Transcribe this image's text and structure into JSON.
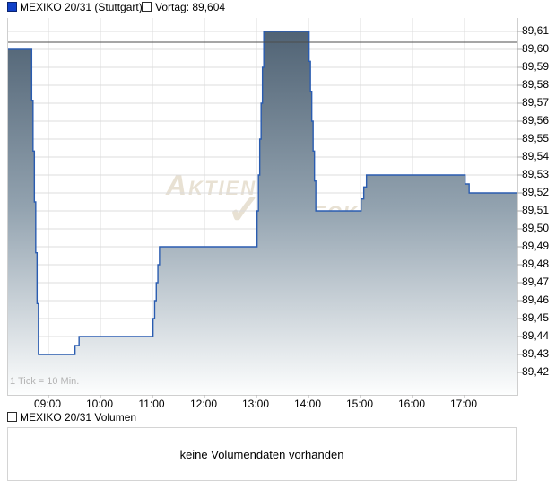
{
  "header": {
    "series_label": "MEXIKO 20/31 (Stuttgart)",
    "vortag_label": "Vortag: 89,604"
  },
  "chart_data": {
    "type": "area",
    "subtype": "step-area-intraday",
    "title": "MEXIKO 20/31 (Stuttgart)",
    "x_axis": {
      "hour_labels": [
        "09:00",
        "10:00",
        "11:00",
        "12:00",
        "13:00",
        "14:00",
        "15:00",
        "16:00",
        "17:00"
      ],
      "tick_note": "1 Tick = 10 Min.",
      "range": [
        "08:13",
        "18:01"
      ]
    },
    "y_axis": {
      "min": 89.42,
      "max": 89.61,
      "step": 0.01,
      "side": "right",
      "tick_labels": [
        "89,61",
        "89,60",
        "89,59",
        "89,58",
        "89,57",
        "89,56",
        "89,55",
        "89,54",
        "89,53",
        "89,52",
        "89,51",
        "89,50",
        "89,49",
        "89,48",
        "89,47",
        "89,46",
        "89,45",
        "89,44",
        "89,43",
        "89,42"
      ]
    },
    "reference_line": {
      "label": "Vortag",
      "value": 89.604
    },
    "series": [
      {
        "name": "MEXIKO 20/31",
        "points": [
          [
            "08:13",
            89.6
          ],
          [
            "08:40",
            89.6
          ],
          [
            "08:50",
            89.43
          ],
          [
            "09:30",
            89.43
          ],
          [
            "09:40",
            89.44
          ],
          [
            "11:00",
            89.44
          ],
          [
            "11:10",
            89.49
          ],
          [
            "13:00",
            89.49
          ],
          [
            "13:10",
            89.61
          ],
          [
            "14:00",
            89.61
          ],
          [
            "14:10",
            89.51
          ],
          [
            "15:00",
            89.51
          ],
          [
            "15:10",
            89.53
          ],
          [
            "17:00",
            89.53
          ],
          [
            "17:10",
            89.52
          ],
          [
            "18:01",
            89.52
          ]
        ]
      }
    ],
    "grid": true,
    "colors": {
      "line": "#2a5cb0",
      "fill_top": "#4b5e70",
      "fill_mid": "#92a2af",
      "fill_bottom": "#fdfefe",
      "reference_line": "#4d4d4d",
      "grid": "#dcdcdc",
      "tick": "#aaaaaa",
      "legend_swatch": "#1040c8"
    }
  },
  "watermark": {
    "part1": "Aktien",
    "check_glyph": "✓",
    "part2": "Check"
  },
  "volume": {
    "legend_label": "MEXIKO 20/31 Volumen",
    "message": "keine Volumendaten vorhanden"
  }
}
